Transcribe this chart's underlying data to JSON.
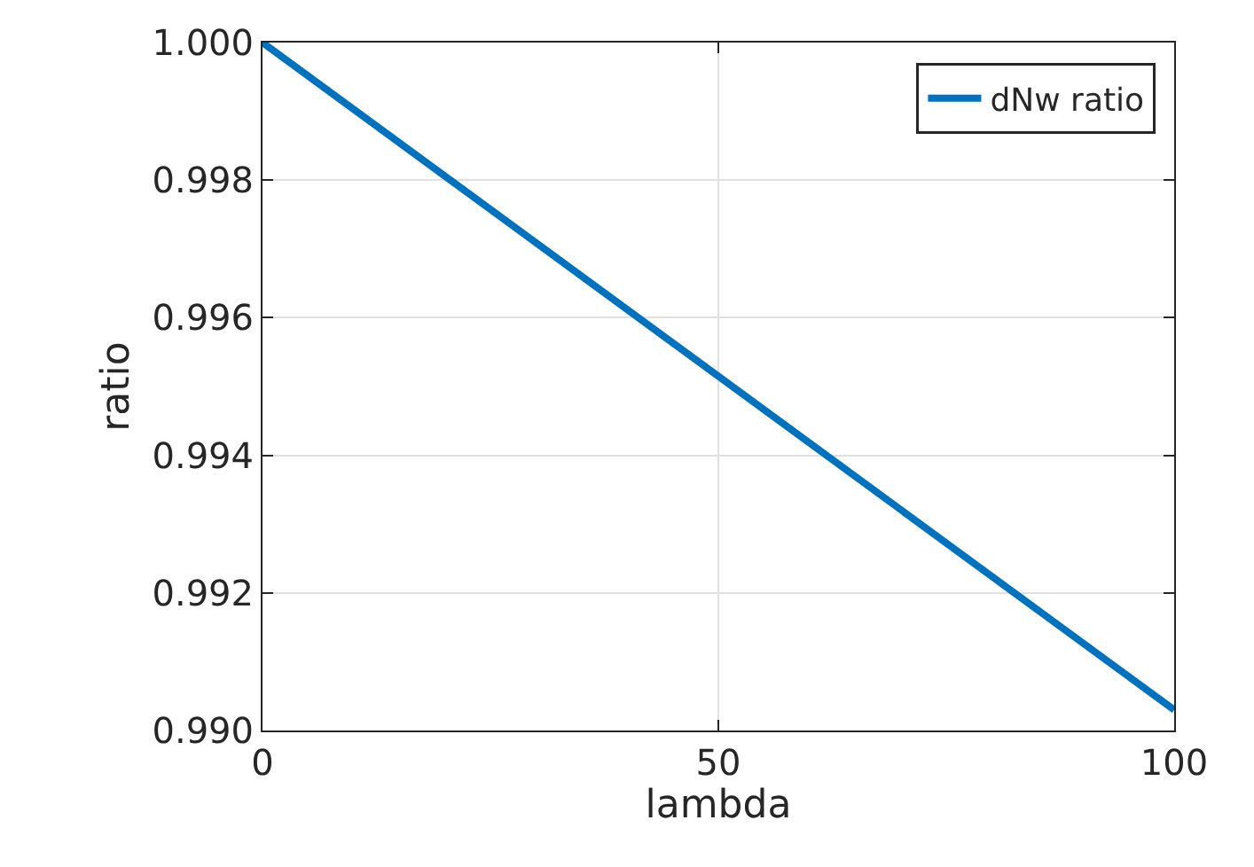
{
  "chart_data": {
    "type": "line",
    "xlabel": "lambda",
    "ylabel": "ratio",
    "x": [
      0,
      100
    ],
    "series": [
      {
        "name": "dNw ratio",
        "color": "#0072bd",
        "values": [
          1.0,
          0.9903
        ]
      }
    ],
    "xlim": [
      0,
      100
    ],
    "xticks": [
      0,
      50,
      100
    ],
    "ylim": [
      0.99,
      1.0
    ],
    "yticks": [
      {
        "value": 0.99,
        "label": "0.990"
      },
      {
        "value": 0.992,
        "label": "0.992"
      },
      {
        "value": 0.994,
        "label": "0.994"
      },
      {
        "value": 0.996,
        "label": "0.996"
      },
      {
        "value": 0.998,
        "label": "0.998"
      },
      {
        "value": 1.0,
        "label": "1.000"
      }
    ],
    "grid": true,
    "legend": "top right",
    "line_style": "solid",
    "marker": "none"
  }
}
